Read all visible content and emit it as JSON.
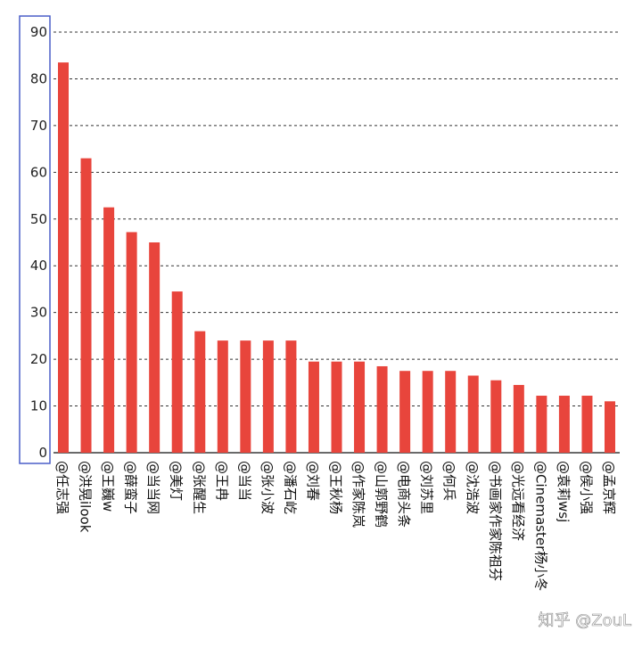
{
  "chart_data": {
    "type": "bar",
    "title": "",
    "xlabel": "",
    "ylabel": "",
    "ylim": [
      0,
      90
    ],
    "yticks": [
      0,
      10,
      20,
      30,
      40,
      50,
      60,
      70,
      80,
      90
    ],
    "grid": "horizontal-dashed",
    "bar_color": "#e8453c",
    "highlight_box_color": "#4a5ec9",
    "categories": [
      "@任志强",
      "@洪晃ilook",
      "@王巍w",
      "@薛蛮子",
      "@当当网",
      "@美灯",
      "@张醒生",
      "@王冉",
      "@当当",
      "@张小波",
      "@潘石屹",
      "@刘春",
      "@王秋杨",
      "@作家陈岚",
      "@山郭野鹤",
      "@电商头条",
      "@刘苏里",
      "@何兵",
      "@沈浩波",
      "@书画家作家陈祖芬",
      "@光远看经济",
      "@Cinemaster杨小冬",
      "@袁莉wsj",
      "@侯小强",
      "@孟京辉"
    ],
    "values": [
      83.5,
      63,
      52.5,
      47.2,
      45,
      34.5,
      26,
      24,
      24,
      24,
      24,
      19.5,
      19.5,
      19.5,
      18.5,
      17.5,
      17.5,
      17.5,
      16.5,
      15.5,
      14.5,
      12.2,
      12.2,
      12.2,
      11
    ]
  },
  "watermark": "知乎 @ZouL"
}
